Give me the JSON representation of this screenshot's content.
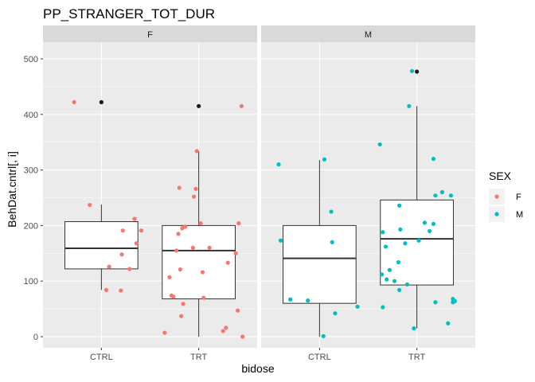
{
  "chart_data": {
    "type": "boxplot",
    "title": "PP_STRANGER_TOT_DUR",
    "xlabel": "bidose",
    "ylabel": "BehDat.cntrl[, i]",
    "ylim": [
      -20,
      530
    ],
    "yticks": [
      0,
      100,
      200,
      300,
      400,
      500
    ],
    "categories": [
      "CTRL",
      "TRT"
    ],
    "facets": [
      "F",
      "M"
    ],
    "legend": {
      "title": "SEX",
      "position": "right",
      "entries": [
        "F",
        "M"
      ]
    },
    "colors": {
      "F": "#f8766d",
      "M": "#00bfc4",
      "outlier": "#1a1a1a",
      "panel": "#ebebeb",
      "strip": "#d9d9d9"
    },
    "panels": [
      {
        "facet": "F",
        "boxes": [
          {
            "category": "CTRL",
            "min": 84,
            "q1": 122,
            "median": 159,
            "q3": 207,
            "max": 238,
            "outliers": [
              422
            ]
          },
          {
            "category": "TRT",
            "min": 0,
            "q1": 68,
            "median": 155,
            "q3": 200,
            "max": 334,
            "outliers": [
              415
            ]
          }
        ],
        "points": [
          {
            "category": "CTRL",
            "x": 0.72,
            "y": 422
          },
          {
            "category": "CTRL",
            "x": 0.88,
            "y": 237
          },
          {
            "category": "CTRL",
            "x": 1.05,
            "y": 84
          },
          {
            "category": "CTRL",
            "x": 1.08,
            "y": 126
          },
          {
            "category": "CTRL",
            "x": 1.2,
            "y": 83
          },
          {
            "category": "CTRL",
            "x": 1.21,
            "y": 148
          },
          {
            "category": "CTRL",
            "x": 1.22,
            "y": 191
          },
          {
            "category": "CTRL",
            "x": 1.29,
            "y": 122
          },
          {
            "category": "CTRL",
            "x": 1.34,
            "y": 212
          },
          {
            "category": "CTRL",
            "x": 1.36,
            "y": 168
          },
          {
            "category": "CTRL",
            "x": 1.41,
            "y": 191
          },
          {
            "category": "TRT",
            "x": 1.65,
            "y": 7
          },
          {
            "category": "TRT",
            "x": 1.7,
            "y": 107
          },
          {
            "category": "TRT",
            "x": 1.72,
            "y": 74
          },
          {
            "category": "TRT",
            "x": 1.74,
            "y": 72
          },
          {
            "category": "TRT",
            "x": 1.77,
            "y": 155
          },
          {
            "category": "TRT",
            "x": 1.79,
            "y": 185
          },
          {
            "category": "TRT",
            "x": 1.8,
            "y": 268
          },
          {
            "category": "TRT",
            "x": 1.81,
            "y": 121
          },
          {
            "category": "TRT",
            "x": 1.82,
            "y": 37
          },
          {
            "category": "TRT",
            "x": 1.83,
            "y": 195
          },
          {
            "category": "TRT",
            "x": 1.84,
            "y": 59
          },
          {
            "category": "TRT",
            "x": 1.86,
            "y": 198
          },
          {
            "category": "TRT",
            "x": 1.94,
            "y": 160
          },
          {
            "category": "TRT",
            "x": 1.95,
            "y": 252
          },
          {
            "category": "TRT",
            "x": 1.97,
            "y": 266
          },
          {
            "category": "TRT",
            "x": 1.98,
            "y": 334
          },
          {
            "category": "TRT",
            "x": 2.02,
            "y": 204
          },
          {
            "category": "TRT",
            "x": 2.04,
            "y": 116
          },
          {
            "category": "TRT",
            "x": 2.05,
            "y": 70
          },
          {
            "category": "TRT",
            "x": 2.11,
            "y": 160
          },
          {
            "category": "TRT",
            "x": 2.25,
            "y": 10
          },
          {
            "category": "TRT",
            "x": 2.28,
            "y": 16
          },
          {
            "category": "TRT",
            "x": 2.3,
            "y": 133
          },
          {
            "category": "TRT",
            "x": 2.38,
            "y": 150
          },
          {
            "category": "TRT",
            "x": 2.4,
            "y": 47
          },
          {
            "category": "TRT",
            "x": 2.41,
            "y": 204
          },
          {
            "category": "TRT",
            "x": 2.44,
            "y": 415
          },
          {
            "category": "TRT",
            "x": 2.45,
            "y": 0
          }
        ]
      },
      {
        "facet": "M",
        "boxes": [
          {
            "category": "CTRL",
            "min": 0,
            "q1": 60,
            "median": 141,
            "q3": 200,
            "max": 318,
            "outliers": []
          },
          {
            "category": "TRT",
            "min": 15,
            "q1": 93,
            "median": 176,
            "q3": 246,
            "max": 415,
            "outliers": [
              477
            ]
          }
        ],
        "points": [
          {
            "category": "CTRL",
            "x": 0.58,
            "y": 310
          },
          {
            "category": "CTRL",
            "x": 0.6,
            "y": 173
          },
          {
            "category": "CTRL",
            "x": 0.7,
            "y": 67
          },
          {
            "category": "CTRL",
            "x": 0.88,
            "y": 65
          },
          {
            "category": "CTRL",
            "x": 1.04,
            "y": 1
          },
          {
            "category": "CTRL",
            "x": 1.05,
            "y": 319
          },
          {
            "category": "CTRL",
            "x": 1.12,
            "y": 225
          },
          {
            "category": "CTRL",
            "x": 1.13,
            "y": 170
          },
          {
            "category": "CTRL",
            "x": 1.16,
            "y": 42
          },
          {
            "category": "CTRL",
            "x": 1.39,
            "y": 54
          },
          {
            "category": "TRT",
            "x": 1.62,
            "y": 346
          },
          {
            "category": "TRT",
            "x": 1.64,
            "y": 112
          },
          {
            "category": "TRT",
            "x": 1.65,
            "y": 188
          },
          {
            "category": "TRT",
            "x": 1.65,
            "y": 53
          },
          {
            "category": "TRT",
            "x": 1.68,
            "y": 162
          },
          {
            "category": "TRT",
            "x": 1.69,
            "y": 103
          },
          {
            "category": "TRT",
            "x": 1.72,
            "y": 120
          },
          {
            "category": "TRT",
            "x": 1.77,
            "y": 100
          },
          {
            "category": "TRT",
            "x": 1.81,
            "y": 134
          },
          {
            "category": "TRT",
            "x": 1.82,
            "y": 236
          },
          {
            "category": "TRT",
            "x": 1.82,
            "y": 84
          },
          {
            "category": "TRT",
            "x": 1.83,
            "y": 193
          },
          {
            "category": "TRT",
            "x": 1.88,
            "y": 168
          },
          {
            "category": "TRT",
            "x": 1.9,
            "y": 94
          },
          {
            "category": "TRT",
            "x": 1.92,
            "y": 415
          },
          {
            "category": "TRT",
            "x": 1.95,
            "y": 478
          },
          {
            "category": "TRT",
            "x": 1.97,
            "y": 15
          },
          {
            "category": "TRT",
            "x": 2.02,
            "y": 173
          },
          {
            "category": "TRT",
            "x": 2.08,
            "y": 205
          },
          {
            "category": "TRT",
            "x": 2.13,
            "y": 190
          },
          {
            "category": "TRT",
            "x": 2.17,
            "y": 203
          },
          {
            "category": "TRT",
            "x": 2.17,
            "y": 320
          },
          {
            "category": "TRT",
            "x": 2.19,
            "y": 62
          },
          {
            "category": "TRT",
            "x": 2.19,
            "y": 254
          },
          {
            "category": "TRT",
            "x": 2.26,
            "y": 260
          },
          {
            "category": "TRT",
            "x": 2.32,
            "y": 24
          },
          {
            "category": "TRT",
            "x": 2.35,
            "y": 254
          },
          {
            "category": "TRT",
            "x": 2.37,
            "y": 62
          },
          {
            "category": "TRT",
            "x": 2.37,
            "y": 68
          },
          {
            "category": "TRT",
            "x": 2.39,
            "y": 64
          }
        ]
      }
    ]
  }
}
